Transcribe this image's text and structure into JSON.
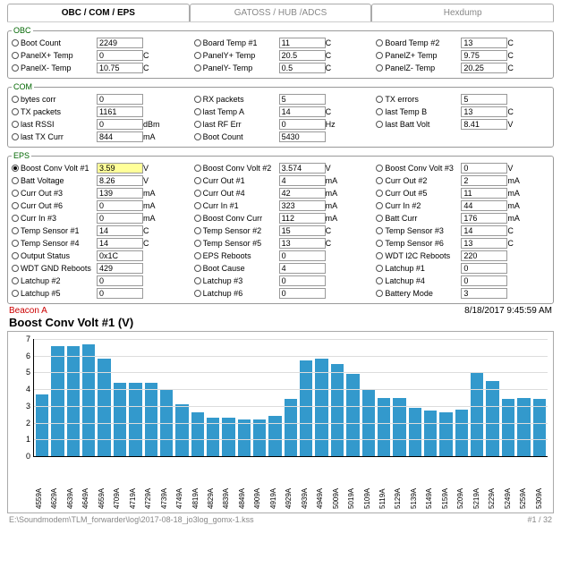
{
  "tabs": [
    "OBC / COM / EPS",
    "GATOSS / HUB /ADCS",
    "Hexdump"
  ],
  "active_tab": 0,
  "groups": {
    "obc": {
      "legend": "OBC",
      "rows": [
        {
          "l": "Boot Count",
          "v": "2249",
          "u": ""
        },
        {
          "l": "Board Temp #1",
          "v": "11",
          "u": "C"
        },
        {
          "l": "Board Temp #2",
          "v": "13",
          "u": "C"
        },
        {
          "l": "PanelX+ Temp",
          "v": "0",
          "u": "C"
        },
        {
          "l": "PanelY+ Temp",
          "v": "20.5",
          "u": "C"
        },
        {
          "l": "PanelZ+ Temp",
          "v": "9.75",
          "u": "C"
        },
        {
          "l": "PanelX- Temp",
          "v": "10.75",
          "u": "C"
        },
        {
          "l": "PanelY- Temp",
          "v": "0.5",
          "u": "C"
        },
        {
          "l": "PanelZ- Temp",
          "v": "20.25",
          "u": "C"
        }
      ]
    },
    "com": {
      "legend": "COM",
      "rows": [
        {
          "l": "bytes corr",
          "v": "0",
          "u": ""
        },
        {
          "l": "RX packets",
          "v": "5",
          "u": ""
        },
        {
          "l": "TX errors",
          "v": "5",
          "u": ""
        },
        {
          "l": "TX packets",
          "v": "1161",
          "u": ""
        },
        {
          "l": "last Temp A",
          "v": "14",
          "u": "C"
        },
        {
          "l": "last Temp B",
          "v": "13",
          "u": "C"
        },
        {
          "l": "last  RSSI",
          "v": "0",
          "u": "dBm"
        },
        {
          "l": "last RF Err",
          "v": "0",
          "u": "Hz"
        },
        {
          "l": "last Batt Volt",
          "v": "8.41",
          "u": "V"
        },
        {
          "l": "last TX Curr",
          "v": "844",
          "u": "mA"
        },
        {
          "l": "Boot Count",
          "v": "5430",
          "u": ""
        },
        {
          "l": "",
          "v": "",
          "u": "",
          "empty": true
        }
      ]
    },
    "eps": {
      "legend": "EPS",
      "rows": [
        {
          "l": "Boost Conv Volt #1",
          "v": "3.59",
          "u": "V",
          "sel": true,
          "hl": true
        },
        {
          "l": "Boost Conv Volt #2",
          "v": "3.574",
          "u": "V"
        },
        {
          "l": "Boost Conv Volt #3",
          "v": "0",
          "u": "V"
        },
        {
          "l": "Batt Voltage",
          "v": "8.26",
          "u": "V"
        },
        {
          "l": "Curr Out #1",
          "v": "4",
          "u": "mA"
        },
        {
          "l": "Curr Out #2",
          "v": "2",
          "u": "mA"
        },
        {
          "l": "Curr Out #3",
          "v": "139",
          "u": "mA"
        },
        {
          "l": "Curr Out #4",
          "v": "42",
          "u": "mA"
        },
        {
          "l": "Curr Out #5",
          "v": "11",
          "u": "mA"
        },
        {
          "l": "Curr Out #6",
          "v": "0",
          "u": "mA"
        },
        {
          "l": "Curr In #1",
          "v": "323",
          "u": "mA"
        },
        {
          "l": "Curr In #2",
          "v": "44",
          "u": "mA"
        },
        {
          "l": "Curr In #3",
          "v": "0",
          "u": "mA"
        },
        {
          "l": "Boost Conv Curr",
          "v": "112",
          "u": "mA"
        },
        {
          "l": "Batt Curr",
          "v": "176",
          "u": "mA"
        },
        {
          "l": "Temp Sensor #1",
          "v": "14",
          "u": "C"
        },
        {
          "l": "Temp Sensor #2",
          "v": "15",
          "u": "C"
        },
        {
          "l": "Temp Sensor #3",
          "v": "14",
          "u": "C"
        },
        {
          "l": "Temp Sensor #4",
          "v": "14",
          "u": "C"
        },
        {
          "l": "Temp Sensor #5",
          "v": "13",
          "u": "C"
        },
        {
          "l": "Temp Sensor #6",
          "v": "13",
          "u": "C"
        },
        {
          "l": "Output Status",
          "v": "0x1C",
          "u": ""
        },
        {
          "l": "EPS Reboots",
          "v": "0",
          "u": ""
        },
        {
          "l": "WDT I2C Reboots",
          "v": "220",
          "u": ""
        },
        {
          "l": "WDT GND Reboots",
          "v": "429",
          "u": ""
        },
        {
          "l": "Boot Cause",
          "v": "4",
          "u": ""
        },
        {
          "l": "Latchup #1",
          "v": "0",
          "u": ""
        },
        {
          "l": "Latchup #2",
          "v": "0",
          "u": ""
        },
        {
          "l": "Latchup #3",
          "v": "0",
          "u": ""
        },
        {
          "l": "Latchup #4",
          "v": "0",
          "u": ""
        },
        {
          "l": "Latchup #5",
          "v": "0",
          "u": ""
        },
        {
          "l": "Latchup #6",
          "v": "0",
          "u": ""
        },
        {
          "l": "Battery Mode",
          "v": "3",
          "u": ""
        }
      ]
    }
  },
  "beacon": {
    "label": "Beacon A",
    "timestamp": "8/18/2017 9:45:59 AM"
  },
  "chart": {
    "title": "Boost Conv Volt #1 (V)",
    "ylim": [
      0,
      7
    ],
    "ytick_step": 1,
    "bar_color": "#3399cc",
    "grid_color": "#dddddd",
    "categories": [
      "4559A",
      "4629A",
      "4639A",
      "4649A",
      "4659A",
      "4709A",
      "4719A",
      "4729A",
      "4739A",
      "4749A",
      "4819A",
      "4829A",
      "4839A",
      "4849A",
      "4909A",
      "4919A",
      "4929A",
      "4939A",
      "4949A",
      "5009A",
      "5019A",
      "5109A",
      "5119A",
      "5129A",
      "5139A",
      "5149A",
      "5159A",
      "5209A",
      "5219A",
      "5229A",
      "5249A",
      "5259A",
      "5309A"
    ],
    "values": [
      3.7,
      6.6,
      6.6,
      6.7,
      5.8,
      4.4,
      4.4,
      4.4,
      4.0,
      3.1,
      2.6,
      2.3,
      2.3,
      2.2,
      2.2,
      2.4,
      3.4,
      5.7,
      5.8,
      5.5,
      4.9,
      4.0,
      3.5,
      3.5,
      2.9,
      2.7,
      2.6,
      2.8,
      5.0,
      4.5,
      3.4,
      3.5,
      3.4
    ]
  },
  "footer": {
    "path": "E:\\Soundmodem\\TLM_forwarder\\log\\2017-08-18_jo3log_gomx-1.kss",
    "page": "#1 / 32"
  }
}
